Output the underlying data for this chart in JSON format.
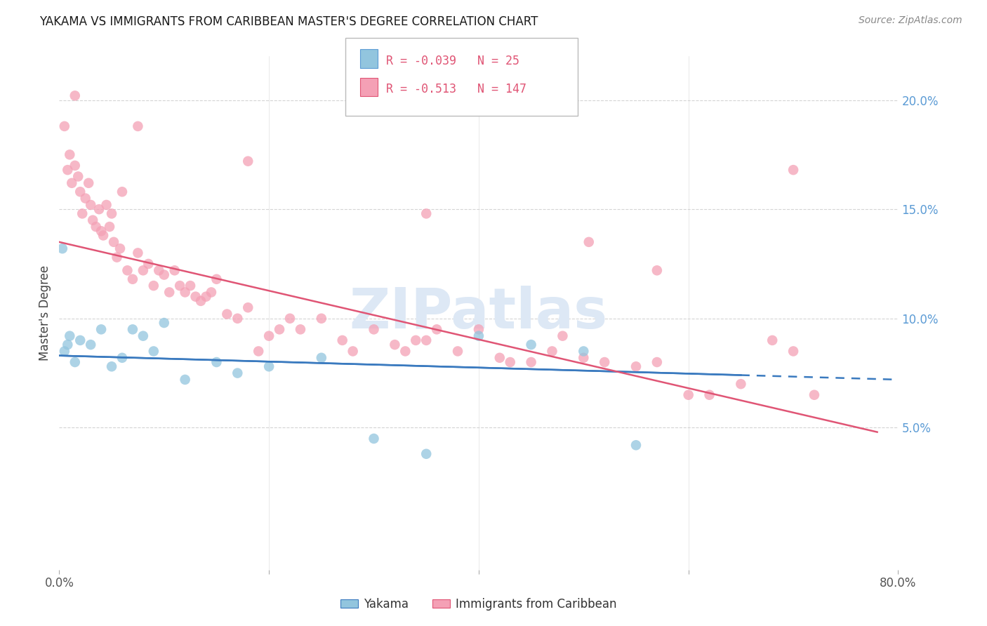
{
  "title": "YAKAMA VS IMMIGRANTS FROM CARIBBEAN MASTER'S DEGREE CORRELATION CHART",
  "source": "Source: ZipAtlas.com",
  "ylabel": "Master's Degree",
  "legend_blue_r": "-0.039",
  "legend_blue_n": "25",
  "legend_pink_r": "-0.513",
  "legend_pink_n": "147",
  "blue_color": "#92c5de",
  "pink_color": "#f4a0b5",
  "trend_blue_color": "#3a7abf",
  "trend_pink_color": "#e05575",
  "right_yticks": [
    5.0,
    10.0,
    15.0,
    20.0
  ],
  "xmin": 0.0,
  "xmax": 80.0,
  "ymin": -1.5,
  "ymax": 22.0,
  "blue_trend_x0": 0.0,
  "blue_trend_y0": 8.3,
  "blue_trend_x1": 80.0,
  "blue_trend_y1": 7.2,
  "blue_dash_start": 65.0,
  "pink_trend_x0": 0.0,
  "pink_trend_y0": 13.5,
  "pink_trend_x1": 78.0,
  "pink_trend_y1": 4.8,
  "blue_scatter_x": [
    0.3,
    0.5,
    0.8,
    1.0,
    1.5,
    2.0,
    3.0,
    4.0,
    5.0,
    6.0,
    7.0,
    8.0,
    9.0,
    10.0,
    12.0,
    15.0,
    17.0,
    20.0,
    25.0,
    30.0,
    35.0,
    40.0,
    45.0,
    50.0,
    55.0
  ],
  "blue_scatter_y": [
    13.2,
    8.5,
    8.8,
    9.2,
    8.0,
    9.0,
    8.8,
    9.5,
    7.8,
    8.2,
    9.5,
    9.2,
    8.5,
    9.8,
    7.2,
    8.0,
    7.5,
    7.8,
    8.2,
    4.5,
    3.8,
    9.2,
    8.8,
    8.5,
    4.2
  ],
  "pink_scatter_x": [
    0.5,
    0.8,
    1.0,
    1.2,
    1.5,
    1.8,
    2.0,
    2.2,
    2.5,
    2.8,
    3.0,
    3.2,
    3.5,
    3.8,
    4.0,
    4.2,
    4.5,
    4.8,
    5.0,
    5.2,
    5.5,
    5.8,
    6.0,
    6.5,
    7.0,
    7.5,
    8.0,
    8.5,
    9.0,
    9.5,
    10.0,
    10.5,
    11.0,
    11.5,
    12.0,
    12.5,
    13.0,
    13.5,
    14.0,
    14.5,
    15.0,
    16.0,
    17.0,
    18.0,
    19.0,
    20.0,
    21.0,
    22.0,
    23.0,
    25.0,
    27.0,
    28.0,
    30.0,
    32.0,
    33.0,
    34.0,
    35.0,
    36.0,
    38.0,
    40.0,
    42.0,
    43.0,
    45.0,
    47.0,
    48.0,
    50.0,
    52.0,
    55.0,
    57.0,
    60.0,
    62.0,
    65.0,
    68.0,
    70.0,
    72.0
  ],
  "pink_scatter_y": [
    18.8,
    16.8,
    17.5,
    16.2,
    17.0,
    16.5,
    15.8,
    14.8,
    15.5,
    16.2,
    15.2,
    14.5,
    14.2,
    15.0,
    14.0,
    13.8,
    15.2,
    14.2,
    14.8,
    13.5,
    12.8,
    13.2,
    15.8,
    12.2,
    11.8,
    13.0,
    12.2,
    12.5,
    11.5,
    12.2,
    12.0,
    11.2,
    12.2,
    11.5,
    11.2,
    11.5,
    11.0,
    10.8,
    11.0,
    11.2,
    11.8,
    10.2,
    10.0,
    10.5,
    8.5,
    9.2,
    9.5,
    10.0,
    9.5,
    10.0,
    9.0,
    8.5,
    9.5,
    8.8,
    8.5,
    9.0,
    9.0,
    9.5,
    8.5,
    9.5,
    8.2,
    8.0,
    8.0,
    8.5,
    9.2,
    8.2,
    8.0,
    7.8,
    8.0,
    6.5,
    6.5,
    7.0,
    9.0,
    8.5,
    6.5
  ],
  "extra_pink_x": [
    1.5,
    7.5,
    18.0,
    35.0,
    50.5,
    57.0,
    70.0
  ],
  "extra_pink_y": [
    20.2,
    18.8,
    17.2,
    14.8,
    13.5,
    12.2,
    16.8
  ],
  "watermark_text": "ZIPatlas",
  "background_color": "#ffffff",
  "grid_color": "#d0d0d0"
}
